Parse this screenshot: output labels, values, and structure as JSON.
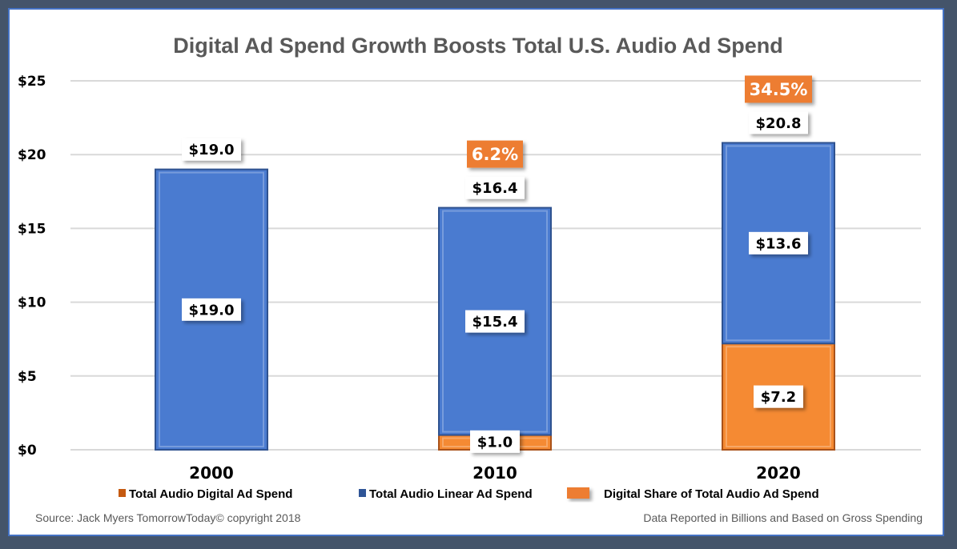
{
  "chart_data": {
    "type": "bar",
    "stacked": true,
    "title": "Digital Ad Spend Growth Boosts Total U.S. Audio Ad Spend",
    "categories": [
      "2000",
      "2010",
      "2020"
    ],
    "series": [
      {
        "name": "Total Audio Digital Ad Spend",
        "values": [
          0,
          1.0,
          7.2
        ],
        "color": "#ed7d31"
      },
      {
        "name": "Total Audio Linear Ad Spend",
        "values": [
          19.0,
          15.4,
          13.6
        ],
        "color": "#4472c4"
      }
    ],
    "totals": [
      19.0,
      16.4,
      20.8
    ],
    "digital_share": {
      "name": "Digital Share of Total Audio Ad Spend",
      "values": [
        null,
        "6.2%",
        "34.5%"
      ],
      "color": "#ed7d31"
    },
    "ylim": [
      0,
      25
    ],
    "yticks": [
      "$0",
      "$5",
      "$10",
      "$15",
      "$20",
      "$25"
    ],
    "grid": true,
    "legend_placement": "bottom"
  },
  "footer": {
    "source": "Source: Jack Myers TomorrowToday© copyright 2018",
    "note": "Data Reported in Billions and Based on Gross Spending"
  }
}
